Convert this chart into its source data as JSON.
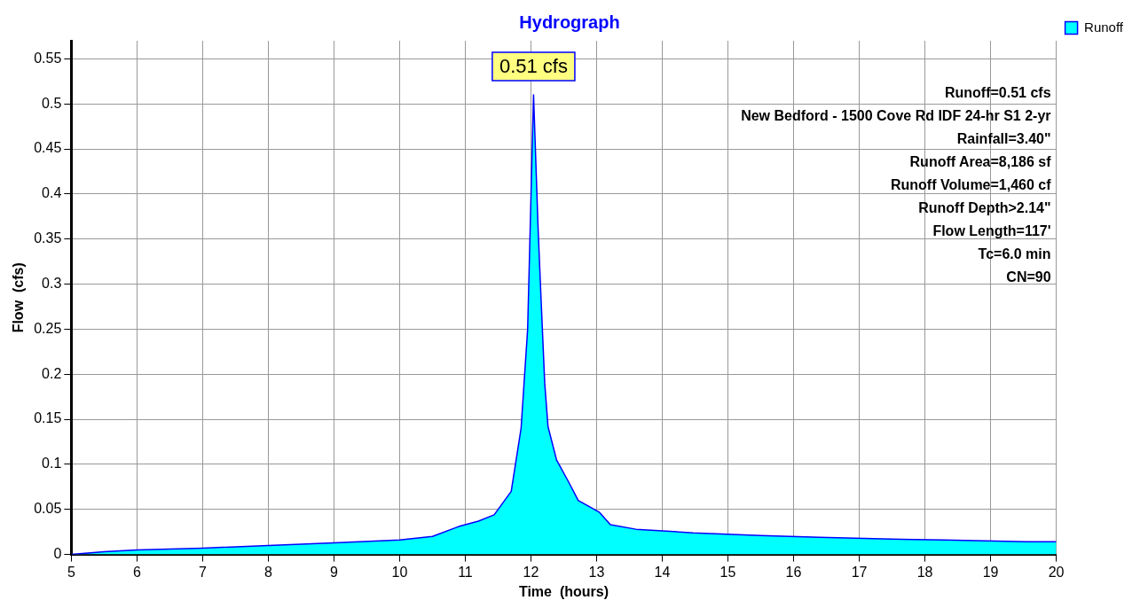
{
  "chart_data": {
    "type": "area",
    "title": "Hydrograph",
    "xlabel": "Time  (hours)",
    "ylabel": "Flow  (cfs)",
    "x": [
      5,
      5.5,
      6,
      7,
      8,
      9,
      10,
      10.5,
      10.9,
      11.2,
      11.44,
      11.7,
      11.85,
      11.95,
      12.04,
      12.11,
      12.16,
      12.21,
      12.26,
      12.39,
      12.57,
      12.72,
      13.04,
      13.21,
      13.6,
      14.47,
      15.5,
      16.4,
      17.5,
      18.3,
      19.56,
      20
    ],
    "series": [
      {
        "name": "Runoff",
        "color": "#00ffff",
        "values": [
          0,
          0.003,
          0.005,
          0.007,
          0.01,
          0.013,
          0.016,
          0.02,
          0.031,
          0.037,
          0.044,
          0.07,
          0.14,
          0.25,
          0.51,
          0.36,
          0.274,
          0.19,
          0.142,
          0.105,
          0.081,
          0.06,
          0.047,
          0.033,
          0.028,
          0.024,
          0.021,
          0.019,
          0.017,
          0.016,
          0.014,
          0.014
        ]
      }
    ],
    "xlim": [
      5,
      20
    ],
    "xticks": [
      5,
      6,
      7,
      8,
      9,
      10,
      11,
      12,
      13,
      14,
      15,
      16,
      17,
      18,
      19,
      20
    ],
    "ylim": [
      0,
      0.57
    ],
    "yticks": [
      0,
      0.05,
      0.1,
      0.15,
      0.2,
      0.25,
      0.3,
      0.35,
      0.4,
      0.45,
      0.5,
      0.55
    ],
    "grid": true,
    "legend": "top right",
    "marker": "none",
    "line_style": "solid",
    "annotations": [
      {
        "text": "0.51 cfs",
        "x": 12.04,
        "y": 0.51
      },
      "Runoff=0.51 cfs",
      "New Bedford - 1500 Cove Rd IDF 24-hr S1 2-yr",
      "Rainfall=3.40\"",
      "Runoff Area=8,186 sf",
      "Runoff Volume=1,460 cf",
      "Runoff Depth>2.14\"",
      "Flow Length=117'",
      "Tc=6.0 min",
      "CN=90"
    ]
  }
}
